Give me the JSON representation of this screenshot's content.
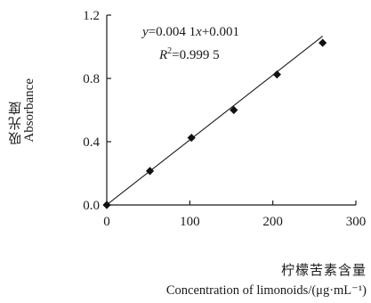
{
  "chart_data": {
    "type": "scatter",
    "ylabel_cn": "吸光度",
    "ylabel_en": "Absorbance",
    "xlabel_cn": "柠檬苦素含量",
    "xlabel_en": "Concentration of limonoids/(μg·mL⁻¹)",
    "xlim": [
      0,
      300
    ],
    "ylim": [
      0,
      1.2
    ],
    "x_ticks": [
      0,
      100,
      200,
      300
    ],
    "y_ticks": [
      "0.0",
      "0.4",
      "0.8",
      "1.2"
    ],
    "points": [
      {
        "x": 0,
        "y": 0.0
      },
      {
        "x": 52,
        "y": 0.215
      },
      {
        "x": 102,
        "y": 0.425
      },
      {
        "x": 153,
        "y": 0.6
      },
      {
        "x": 205,
        "y": 0.825
      },
      {
        "x": 260,
        "y": 1.025
      }
    ],
    "regression": {
      "slope": 0.0041,
      "intercept": 0.001,
      "x_range": [
        0,
        260
      ],
      "equation_parts": [
        "y",
        "=0.004 1",
        "x",
        "+0.001"
      ],
      "r2_parts": [
        "R",
        "2",
        "=0.999 5"
      ]
    },
    "grid": false,
    "legend": "none"
  }
}
